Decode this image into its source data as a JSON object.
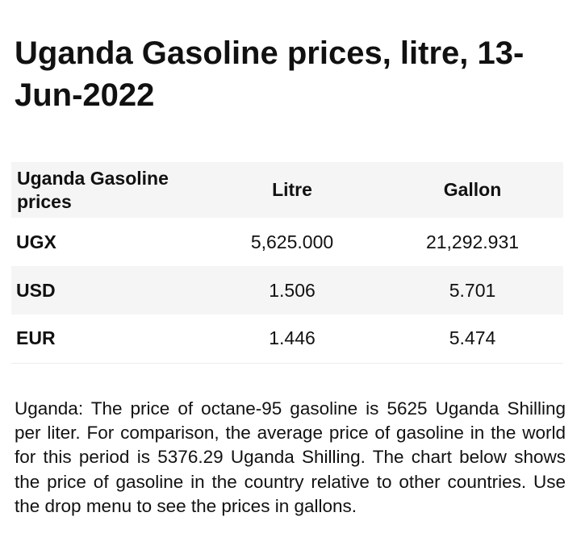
{
  "title": "Uganda Gasoline prices, litre, 13-Jun-2022",
  "table": {
    "headers": [
      "Uganda Gasoline prices",
      "Litre",
      "Gallon"
    ],
    "rows": [
      {
        "currency": "UGX",
        "litre": "5,625.000",
        "gallon": "21,292.931"
      },
      {
        "currency": "USD",
        "litre": "1.506",
        "gallon": "5.701"
      },
      {
        "currency": "EUR",
        "litre": "1.446",
        "gallon": "5.474"
      }
    ]
  },
  "description": "Uganda: The price of octane-95 gasoline is 5625 Uganda Shilling per liter. For comparison, the average price of gasoline in the world for this period is 5376.29 Uganda Shilling. The chart below shows the price of gasoline in the country relative to other countries. Use the drop menu to see the prices in gallons."
}
